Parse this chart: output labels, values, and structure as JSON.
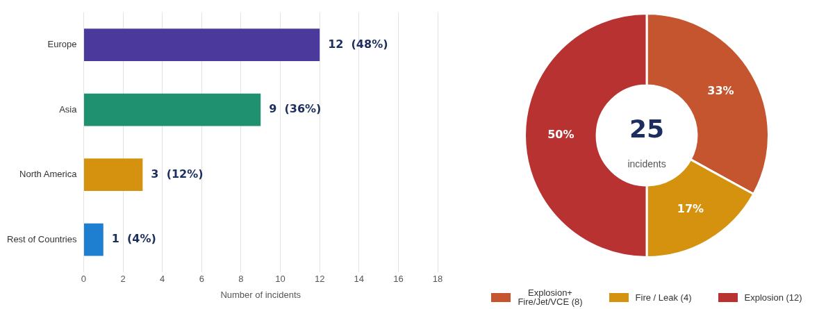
{
  "chart_data": [
    {
      "type": "bar",
      "orientation": "horizontal",
      "categories": [
        "Europe",
        "Asia",
        "North America",
        "Rest of Countries"
      ],
      "values": [
        12,
        9,
        3,
        1
      ],
      "colors": [
        "#4b3a9c",
        "#1f9070",
        "#d4920f",
        "#1e7fd0"
      ],
      "value_labels": [
        "12  (48%)",
        "9  (36%)",
        "3  (12%)",
        "1  (4%)"
      ],
      "xlabel": "Number of incidents",
      "xlim": [
        0,
        18
      ],
      "xticks": [
        0,
        2,
        4,
        6,
        8,
        10,
        12,
        14,
        16,
        18
      ],
      "grid": "x",
      "legend": false
    },
    {
      "type": "donut",
      "categories": [
        "Explosion+\nFire/Jet/VCE (8)",
        "Fire / Leak (4)",
        "Explosion (12)"
      ],
      "values": [
        33,
        17,
        50
      ],
      "colors": [
        "#c4552e",
        "#d4920f",
        "#b83232"
      ],
      "value_labels": [
        "33%",
        "17%",
        "50%"
      ],
      "annotations": [
        "25",
        "incidents"
      ],
      "legend": "bottom"
    }
  ]
}
